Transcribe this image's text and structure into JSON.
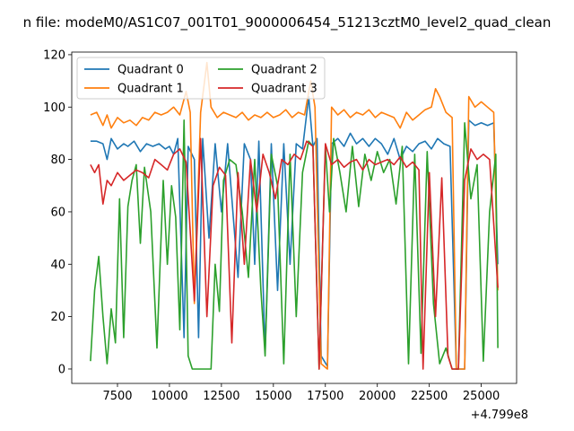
{
  "chart_data": {
    "type": "line",
    "title": "n file: modeM0/AS1C07_001T01_9000006454_51213cztM0_level2_quad_clean",
    "xlabel": "",
    "ylabel": "",
    "offset_label": "+4.799e8",
    "xlim": [
      5300,
      26700
    ],
    "ylim": [
      -5.5,
      121
    ],
    "xticks": [
      7500,
      10000,
      12500,
      15000,
      17500,
      20000,
      22500,
      25000
    ],
    "yticks": [
      0,
      20,
      40,
      60,
      80,
      100,
      120
    ],
    "grid": false,
    "legend": {
      "placement": "top-left",
      "columns": 2
    },
    "series": [
      {
        "name": "Quadrant 0",
        "color": "#1f77b4",
        "points": [
          [
            6200,
            87
          ],
          [
            6500,
            87
          ],
          [
            6800,
            86
          ],
          [
            7000,
            80
          ],
          [
            7200,
            88
          ],
          [
            7500,
            84
          ],
          [
            7800,
            86
          ],
          [
            8000,
            85
          ],
          [
            8300,
            87
          ],
          [
            8600,
            83
          ],
          [
            8900,
            86
          ],
          [
            9200,
            85
          ],
          [
            9500,
            86
          ],
          [
            9800,
            84
          ],
          [
            10000,
            85
          ],
          [
            10200,
            82
          ],
          [
            10400,
            88
          ],
          [
            10700,
            12
          ],
          [
            10900,
            85
          ],
          [
            11200,
            80
          ],
          [
            11400,
            12
          ],
          [
            11600,
            88
          ],
          [
            11900,
            50
          ],
          [
            12200,
            86
          ],
          [
            12500,
            60
          ],
          [
            12800,
            86
          ],
          [
            13100,
            55
          ],
          [
            13300,
            35
          ],
          [
            13600,
            86
          ],
          [
            13900,
            80
          ],
          [
            14100,
            40
          ],
          [
            14300,
            87
          ],
          [
            14600,
            6
          ],
          [
            14900,
            86
          ],
          [
            15200,
            30
          ],
          [
            15500,
            86
          ],
          [
            15800,
            40
          ],
          [
            16100,
            86
          ],
          [
            16400,
            84
          ],
          [
            16700,
            104
          ],
          [
            16900,
            85
          ],
          [
            17100,
            88
          ],
          [
            17300,
            5
          ],
          [
            17600,
            1
          ],
          [
            17800,
            86
          ],
          [
            18100,
            88
          ],
          [
            18400,
            85
          ],
          [
            18700,
            90
          ],
          [
            19000,
            86
          ],
          [
            19300,
            88
          ],
          [
            19600,
            85
          ],
          [
            19900,
            88
          ],
          [
            20200,
            86
          ],
          [
            20500,
            82
          ],
          [
            20800,
            88
          ],
          [
            21100,
            80
          ],
          [
            21400,
            85
          ],
          [
            21700,
            83
          ],
          [
            22000,
            86
          ],
          [
            22300,
            87
          ],
          [
            22600,
            84
          ],
          [
            22900,
            88
          ],
          [
            23200,
            86
          ],
          [
            23500,
            85
          ],
          [
            23800,
            0
          ],
          [
            24200,
            0
          ],
          [
            24400,
            95
          ],
          [
            24700,
            93
          ],
          [
            25000,
            94
          ],
          [
            25300,
            93
          ],
          [
            25600,
            94
          ],
          [
            25800,
            40
          ]
        ]
      },
      {
        "name": "Quadrant 1",
        "color": "#ff7f0e",
        "points": [
          [
            6200,
            97
          ],
          [
            6500,
            98
          ],
          [
            6800,
            93
          ],
          [
            7000,
            97
          ],
          [
            7200,
            92
          ],
          [
            7500,
            96
          ],
          [
            7800,
            94
          ],
          [
            8100,
            95
          ],
          [
            8400,
            93
          ],
          [
            8700,
            96
          ],
          [
            9000,
            95
          ],
          [
            9300,
            98
          ],
          [
            9600,
            97
          ],
          [
            9900,
            98
          ],
          [
            10200,
            100
          ],
          [
            10500,
            97
          ],
          [
            10800,
            106
          ],
          [
            11000,
            98
          ],
          [
            11200,
            25
          ],
          [
            11500,
            98
          ],
          [
            11800,
            117
          ],
          [
            12000,
            100
          ],
          [
            12300,
            96
          ],
          [
            12600,
            98
          ],
          [
            12900,
            97
          ],
          [
            13200,
            96
          ],
          [
            13500,
            98
          ],
          [
            13800,
            95
          ],
          [
            14100,
            97
          ],
          [
            14400,
            96
          ],
          [
            14700,
            98
          ],
          [
            15000,
            96
          ],
          [
            15300,
            97
          ],
          [
            15600,
            99
          ],
          [
            15900,
            96
          ],
          [
            16200,
            98
          ],
          [
            16500,
            97
          ],
          [
            16800,
            110
          ],
          [
            17000,
            100
          ],
          [
            17300,
            2
          ],
          [
            17600,
            0
          ],
          [
            17800,
            100
          ],
          [
            18100,
            97
          ],
          [
            18400,
            99
          ],
          [
            18700,
            96
          ],
          [
            19000,
            98
          ],
          [
            19300,
            97
          ],
          [
            19600,
            99
          ],
          [
            19900,
            96
          ],
          [
            20200,
            98
          ],
          [
            20500,
            97
          ],
          [
            20800,
            96
          ],
          [
            21100,
            92
          ],
          [
            21400,
            98
          ],
          [
            21700,
            95
          ],
          [
            22000,
            97
          ],
          [
            22300,
            99
          ],
          [
            22600,
            100
          ],
          [
            22800,
            107
          ],
          [
            23000,
            104
          ],
          [
            23300,
            98
          ],
          [
            23600,
            96
          ],
          [
            23800,
            0
          ],
          [
            24200,
            0
          ],
          [
            24400,
            104
          ],
          [
            24700,
            100
          ],
          [
            25000,
            102
          ],
          [
            25300,
            100
          ],
          [
            25600,
            98
          ],
          [
            25800,
            30
          ]
        ]
      },
      {
        "name": "Quadrant 2",
        "color": "#2ca02c",
        "points": [
          [
            6200,
            3
          ],
          [
            6400,
            30
          ],
          [
            6600,
            43
          ],
          [
            6800,
            20
          ],
          [
            7000,
            2
          ],
          [
            7200,
            23
          ],
          [
            7400,
            10
          ],
          [
            7600,
            65
          ],
          [
            7800,
            12
          ],
          [
            8000,
            62
          ],
          [
            8200,
            72
          ],
          [
            8400,
            78
          ],
          [
            8600,
            48
          ],
          [
            8800,
            77
          ],
          [
            9100,
            60
          ],
          [
            9400,
            8
          ],
          [
            9700,
            72
          ],
          [
            9900,
            40
          ],
          [
            10100,
            70
          ],
          [
            10300,
            58
          ],
          [
            10500,
            15
          ],
          [
            10700,
            95
          ],
          [
            10900,
            5
          ],
          [
            11100,
            0
          ],
          [
            11400,
            0
          ],
          [
            11700,
            0
          ],
          [
            12000,
            0
          ],
          [
            12200,
            40
          ],
          [
            12400,
            22
          ],
          [
            12600,
            72
          ],
          [
            12900,
            80
          ],
          [
            13200,
            78
          ],
          [
            13500,
            60
          ],
          [
            13800,
            35
          ],
          [
            14100,
            80
          ],
          [
            14400,
            30
          ],
          [
            14600,
            5
          ],
          [
            14900,
            82
          ],
          [
            15200,
            70
          ],
          [
            15500,
            2
          ],
          [
            15800,
            82
          ],
          [
            16100,
            20
          ],
          [
            16400,
            75
          ],
          [
            16700,
            87
          ],
          [
            16900,
            85
          ],
          [
            17200,
            0
          ],
          [
            17500,
            85
          ],
          [
            17700,
            60
          ],
          [
            17900,
            88
          ],
          [
            18200,
            75
          ],
          [
            18500,
            60
          ],
          [
            18800,
            85
          ],
          [
            19100,
            62
          ],
          [
            19400,
            82
          ],
          [
            19700,
            72
          ],
          [
            20000,
            83
          ],
          [
            20300,
            75
          ],
          [
            20600,
            80
          ],
          [
            20900,
            63
          ],
          [
            21200,
            85
          ],
          [
            21500,
            2
          ],
          [
            21800,
            82
          ],
          [
            22100,
            6
          ],
          [
            22400,
            83
          ],
          [
            22700,
            25
          ],
          [
            23000,
            2
          ],
          [
            23300,
            8
          ],
          [
            23600,
            0
          ],
          [
            23900,
            0
          ],
          [
            24200,
            94
          ],
          [
            24500,
            65
          ],
          [
            24800,
            78
          ],
          [
            25100,
            3
          ],
          [
            25400,
            60
          ],
          [
            25700,
            82
          ],
          [
            25800,
            8
          ]
        ]
      },
      {
        "name": "Quadrant 3",
        "color": "#d62728",
        "points": [
          [
            6200,
            78
          ],
          [
            6400,
            75
          ],
          [
            6600,
            78
          ],
          [
            6800,
            63
          ],
          [
            7000,
            72
          ],
          [
            7200,
            70
          ],
          [
            7500,
            75
          ],
          [
            7800,
            72
          ],
          [
            8100,
            74
          ],
          [
            8400,
            76
          ],
          [
            8700,
            75
          ],
          [
            9000,
            73
          ],
          [
            9300,
            80
          ],
          [
            9600,
            78
          ],
          [
            9900,
            76
          ],
          [
            10200,
            82
          ],
          [
            10500,
            84
          ],
          [
            10800,
            79
          ],
          [
            11200,
            26
          ],
          [
            11500,
            88
          ],
          [
            11800,
            20
          ],
          [
            12100,
            70
          ],
          [
            12400,
            77
          ],
          [
            12700,
            74
          ],
          [
            13000,
            10
          ],
          [
            13300,
            75
          ],
          [
            13600,
            40
          ],
          [
            13900,
            80
          ],
          [
            14200,
            60
          ],
          [
            14500,
            82
          ],
          [
            14800,
            75
          ],
          [
            15100,
            65
          ],
          [
            15400,
            80
          ],
          [
            15700,
            78
          ],
          [
            16000,
            82
          ],
          [
            16300,
            80
          ],
          [
            16600,
            87
          ],
          [
            16900,
            85
          ],
          [
            17200,
            0
          ],
          [
            17500,
            86
          ],
          [
            17800,
            78
          ],
          [
            18100,
            80
          ],
          [
            18400,
            77
          ],
          [
            18700,
            79
          ],
          [
            19000,
            80
          ],
          [
            19300,
            76
          ],
          [
            19600,
            80
          ],
          [
            19900,
            78
          ],
          [
            20200,
            79
          ],
          [
            20500,
            80
          ],
          [
            20800,
            78
          ],
          [
            21100,
            81
          ],
          [
            21400,
            77
          ],
          [
            21700,
            79
          ],
          [
            22000,
            76
          ],
          [
            22200,
            0
          ],
          [
            22500,
            75
          ],
          [
            22800,
            20
          ],
          [
            23100,
            73
          ],
          [
            23400,
            5
          ],
          [
            23600,
            0
          ],
          [
            23900,
            0
          ],
          [
            24200,
            72
          ],
          [
            24500,
            84
          ],
          [
            24800,
            80
          ],
          [
            25100,
            82
          ],
          [
            25400,
            80
          ],
          [
            25800,
            31
          ]
        ]
      }
    ]
  }
}
